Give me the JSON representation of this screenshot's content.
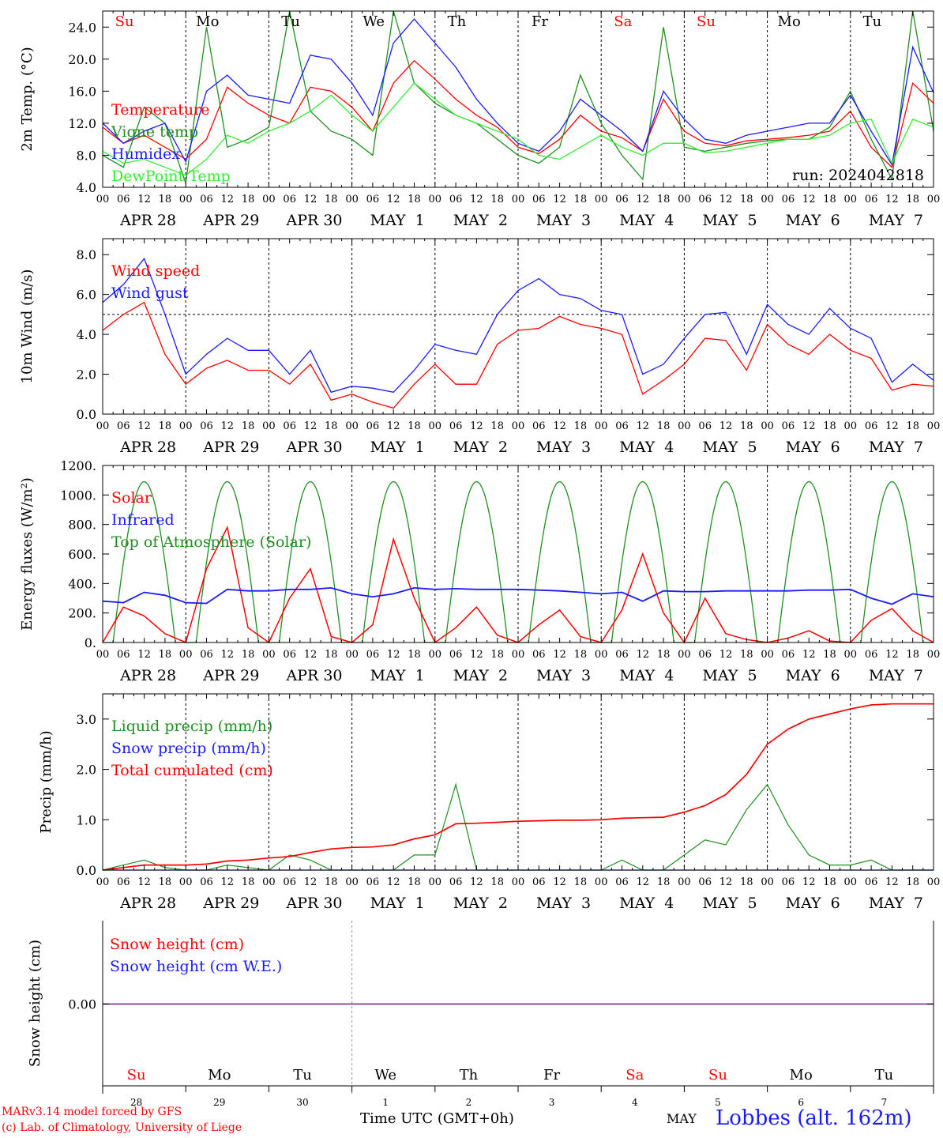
{
  "footer": {
    "credit_model": "MARv3.14 model forced by GFS",
    "credit_lab": "(c) Lab. of Climatology, University of Liege",
    "x_title": "Time UTC (GMT+0h)",
    "month": "MAY",
    "station": "Lobbes (alt. 162m)"
  },
  "colors": {
    "red": "#ff0000",
    "green": "#1f8f1f",
    "blue": "#1a1aff",
    "lightgreen": "#33ee33",
    "purple": "#7a3f8f"
  },
  "chart_data": [
    {
      "type": "line",
      "ylabel": "2m Temp. (°C)",
      "ylim": [
        4,
        26
      ],
      "yticks": [
        "4.0",
        "8.0",
        "12.0",
        "16.0",
        "20.0",
        "24.0"
      ],
      "ytick_values": [
        4,
        8,
        12,
        16,
        20,
        24
      ],
      "hour_ticks": [
        "00",
        "06",
        "12",
        "18"
      ],
      "date_labels": [
        "APR 28",
        "APR 29",
        "APR 30",
        "MAY  1",
        "MAY  2",
        "MAY  3",
        "MAY  4",
        "MAY  5",
        "MAY  6",
        "MAY  7"
      ],
      "day_labels": [
        "Su",
        "Mo",
        "Tu",
        "We",
        "Th",
        "Fr",
        "Sa",
        "Su",
        "Mo",
        "Tu"
      ],
      "annotation": "run: 2024042818",
      "legend": [
        "Temperature",
        "Vigne temp",
        "Humidex",
        "DewPoint Temp"
      ],
      "x_hours": [
        0,
        6,
        12,
        18,
        24,
        30,
        36,
        42,
        48,
        54,
        60,
        66,
        72,
        78,
        84,
        90,
        96,
        102,
        108,
        114,
        120,
        126,
        132,
        138,
        144,
        150,
        156,
        162,
        168,
        174,
        180,
        186,
        192,
        198,
        204,
        210,
        216,
        222,
        228,
        234,
        240
      ],
      "series": [
        {
          "name": "Temperature",
          "color": "red",
          "values": [
            11.5,
            9.5,
            10.5,
            9,
            7.5,
            10,
            16.5,
            14.5,
            13,
            12,
            16.5,
            16,
            14,
            11,
            17,
            19.8,
            17.5,
            15,
            13,
            11.5,
            9,
            8.2,
            10,
            13,
            11,
            10.2,
            8.5,
            15,
            11,
            9.5,
            9.2,
            9.8,
            10,
            10.2,
            10.5,
            11,
            13.5,
            9,
            6.5,
            17,
            14.5
          ]
        },
        {
          "name": "Vigne temp",
          "color": "green",
          "values": [
            8,
            6.5,
            14,
            12,
            4.5,
            24,
            9,
            10,
            11.5,
            26,
            13.5,
            11,
            10,
            8,
            26,
            17,
            14.5,
            13,
            12,
            10,
            8,
            7,
            9,
            18,
            12,
            8,
            5,
            24,
            9,
            8.5,
            9,
            9.5,
            9.8,
            10,
            10,
            11.5,
            16,
            10,
            5,
            26,
            11
          ]
        },
        {
          "name": "Humidex",
          "color": "blue",
          "values": [
            12,
            9.5,
            11,
            12,
            7.2,
            16,
            18,
            15.5,
            15,
            14.5,
            20.5,
            20,
            17,
            13,
            22,
            25,
            22,
            19,
            15,
            12,
            9.5,
            8.5,
            11,
            15,
            13,
            11,
            8.5,
            16,
            12.5,
            10,
            9.5,
            10.5,
            11,
            11.5,
            12,
            12,
            15.5,
            11,
            6.8,
            21.5,
            15.8
          ]
        },
        {
          "name": "DewPoint Temp",
          "color": "lightgreen",
          "values": [
            8.5,
            7,
            7.5,
            6.5,
            5.5,
            7.5,
            10.5,
            9.5,
            11,
            12,
            13.5,
            15.5,
            13,
            11,
            14,
            17,
            15,
            13,
            12,
            11,
            10,
            8,
            7.5,
            9,
            10.5,
            9,
            8,
            9.5,
            9.5,
            8.3,
            8.5,
            9,
            9.5,
            10,
            10,
            10.5,
            12,
            12.5,
            7,
            12.5,
            11.5
          ]
        }
      ]
    },
    {
      "type": "line",
      "ylabel": "10m Wind (m/s)",
      "ylim": [
        0,
        8.8
      ],
      "yticks": [
        "0.0",
        "2.0",
        "4.0",
        "6.0",
        "8.0"
      ],
      "ytick_values": [
        0,
        2,
        4,
        6,
        8
      ],
      "hour_ticks": [
        "00",
        "06",
        "12",
        "18"
      ],
      "date_labels": [
        "APR 28",
        "APR 29",
        "APR 30",
        "MAY  1",
        "MAY  2",
        "MAY  3",
        "MAY  4",
        "MAY  5",
        "MAY  6",
        "MAY  7"
      ],
      "reference_line": 5.0,
      "legend": [
        "Wind speed",
        "Wind gust"
      ],
      "x_hours": [
        0,
        6,
        12,
        18,
        24,
        30,
        36,
        42,
        48,
        54,
        60,
        66,
        72,
        78,
        84,
        90,
        96,
        102,
        108,
        114,
        120,
        126,
        132,
        138,
        144,
        150,
        156,
        162,
        168,
        174,
        180,
        186,
        192,
        198,
        204,
        210,
        216,
        222,
        228,
        234,
        240
      ],
      "series": [
        {
          "name": "Wind speed",
          "color": "red",
          "values": [
            4.2,
            5,
            5.6,
            3,
            1.5,
            2.3,
            2.7,
            2.2,
            2.2,
            1.5,
            2.5,
            0.7,
            1,
            0.6,
            0.3,
            1.5,
            2.5,
            1.5,
            1.5,
            3.5,
            4.2,
            4.3,
            4.9,
            4.5,
            4.3,
            4,
            1,
            1.7,
            2.5,
            3.8,
            3.7,
            2.2,
            4.5,
            3.5,
            3,
            4,
            3.2,
            2.8,
            1.2,
            1.5,
            1.4
          ]
        },
        {
          "name": "Wind gust",
          "color": "blue",
          "values": [
            5.6,
            6.5,
            7.8,
            5,
            2,
            3,
            3.8,
            3.2,
            3.2,
            2,
            3.2,
            1.1,
            1.4,
            1.3,
            1.1,
            2.2,
            3.5,
            3.2,
            3,
            5,
            6.2,
            6.8,
            6,
            5.8,
            5.2,
            5,
            2,
            2.5,
            3.8,
            5,
            5.1,
            3,
            5.5,
            4.5,
            4,
            5.3,
            4.3,
            3.8,
            1.6,
            2.5,
            1.7
          ]
        }
      ]
    },
    {
      "type": "line",
      "ylabel": "Energy fluxes (W/m²)",
      "ylim": [
        0,
        1200
      ],
      "yticks": [
        "0.",
        "200.",
        "400.",
        "600.",
        "800.",
        "1000.",
        "1200."
      ],
      "ytick_values": [
        0,
        200,
        400,
        600,
        800,
        1000,
        1200
      ],
      "hour_ticks": [
        "00",
        "06",
        "12",
        "18"
      ],
      "date_labels": [
        "APR 28",
        "APR 29",
        "APR 30",
        "MAY  1",
        "MAY  2",
        "MAY  3",
        "MAY  4",
        "MAY  5",
        "MAY  6",
        "MAY  7"
      ],
      "legend": [
        "Solar",
        "Infrared",
        "Top of Atmosphere (Solar)"
      ],
      "top_of_atmosphere": {
        "name": "Top of Atmosphere (Solar)",
        "color": "green",
        "daily_peak": 1090,
        "sunrise_hour": 3,
        "sunset_hour": 21
      },
      "x_hours": [
        0,
        6,
        12,
        18,
        24,
        30,
        36,
        42,
        48,
        54,
        60,
        66,
        72,
        78,
        84,
        90,
        96,
        102,
        108,
        114,
        120,
        126,
        132,
        138,
        144,
        150,
        156,
        162,
        168,
        174,
        180,
        186,
        192,
        198,
        204,
        210,
        216,
        222,
        228,
        234,
        240
      ],
      "series": [
        {
          "name": "Solar",
          "color": "red",
          "values": [
            0,
            240,
            180,
            60,
            0,
            500,
            780,
            100,
            0,
            300,
            500,
            40,
            0,
            120,
            700,
            300,
            0,
            100,
            240,
            50,
            0,
            120,
            220,
            40,
            0,
            220,
            600,
            200,
            0,
            300,
            60,
            20,
            0,
            30,
            80,
            10,
            0,
            150,
            230,
            80,
            0
          ]
        },
        {
          "name": "Infrared",
          "color": "blue",
          "values": [
            280,
            270,
            340,
            320,
            270,
            265,
            360,
            350,
            350,
            360,
            360,
            370,
            330,
            310,
            330,
            370,
            360,
            365,
            360,
            360,
            360,
            355,
            350,
            340,
            330,
            340,
            280,
            350,
            345,
            345,
            350,
            350,
            350,
            350,
            355,
            355,
            360,
            300,
            260,
            330,
            310
          ]
        }
      ]
    },
    {
      "type": "line",
      "ylabel": "Precip (mm/h)",
      "ylim": [
        0,
        3.5
      ],
      "yticks": [
        "0.0",
        "1.0",
        "2.0",
        "3.0"
      ],
      "ytick_values": [
        0,
        1,
        2,
        3
      ],
      "hour_ticks": [
        "00",
        "06",
        "12",
        "18"
      ],
      "date_labels": [
        "APR 28",
        "APR 29",
        "APR 30",
        "MAY  1",
        "MAY  2",
        "MAY  3",
        "MAY  4",
        "MAY  5",
        "MAY  6",
        "MAY  7"
      ],
      "legend": [
        "Liquid precip (mm/h)",
        "Snow precip (mm/h)",
        "Total cumulated (cm)"
      ],
      "x_hours": [
        0,
        6,
        12,
        18,
        24,
        30,
        36,
        42,
        48,
        54,
        60,
        66,
        72,
        78,
        84,
        90,
        96,
        102,
        108,
        114,
        120,
        126,
        132,
        138,
        144,
        150,
        156,
        162,
        168,
        174,
        180,
        186,
        192,
        198,
        204,
        210,
        216,
        222,
        228,
        234,
        240
      ],
      "series": [
        {
          "name": "Liquid precip (mm/h)",
          "color": "green",
          "values": [
            0,
            0.1,
            0.2,
            0.05,
            0,
            0,
            0.1,
            0.05,
            0,
            0.3,
            0.2,
            0,
            0,
            0,
            0,
            0.3,
            0.3,
            1.7,
            0,
            0,
            0,
            0,
            0,
            0,
            0,
            0.2,
            0,
            0,
            0.3,
            0.6,
            0.5,
            1.2,
            1.7,
            0.9,
            0.3,
            0.1,
            0.1,
            0.2,
            0,
            0,
            0
          ]
        },
        {
          "name": "Snow precip (mm/h)",
          "color": "blue",
          "values": [
            0,
            0,
            0,
            0,
            0,
            0,
            0,
            0,
            0,
            0,
            0,
            0,
            0,
            0,
            0,
            0,
            0,
            0,
            0,
            0,
            0,
            0,
            0,
            0,
            0,
            0,
            0,
            0,
            0,
            0,
            0,
            0,
            0,
            0,
            0,
            0,
            0,
            0,
            0,
            0,
            0
          ]
        },
        {
          "name": "Total cumulated (cm)",
          "color": "red",
          "values": [
            0,
            0.05,
            0.1,
            0.1,
            0.1,
            0.12,
            0.18,
            0.2,
            0.24,
            0.27,
            0.35,
            0.42,
            0.45,
            0.46,
            0.5,
            0.62,
            0.7,
            0.92,
            0.93,
            0.95,
            0.97,
            0.98,
            0.99,
            0.99,
            1.0,
            1.03,
            1.04,
            1.05,
            1.15,
            1.28,
            1.5,
            1.9,
            2.5,
            2.8,
            3.0,
            3.1,
            3.2,
            3.28,
            3.3,
            3.3,
            3.3
          ]
        }
      ]
    },
    {
      "type": "line",
      "ylabel": "Snow height (cm)",
      "yticks": [
        "0.00"
      ],
      "ytick_values": [
        0
      ],
      "legend": [
        "Snow height (cm)",
        "Snow height (cm W.E.)"
      ],
      "day_labels": [
        "Su",
        "Mo",
        "Tu",
        "We",
        "Th",
        "Fr",
        "Sa",
        "Su",
        "Mo",
        "Tu"
      ],
      "date_labels": [
        "28",
        "29",
        "30",
        "1",
        "2",
        "3",
        "4",
        "5",
        "6",
        "7"
      ],
      "series": [
        {
          "name": "Snow height (cm)",
          "color": "red",
          "values": [
            0,
            0
          ]
        },
        {
          "name": "Snow height (cm W.E.)",
          "color": "blue",
          "values": [
            0,
            0
          ]
        }
      ]
    }
  ]
}
